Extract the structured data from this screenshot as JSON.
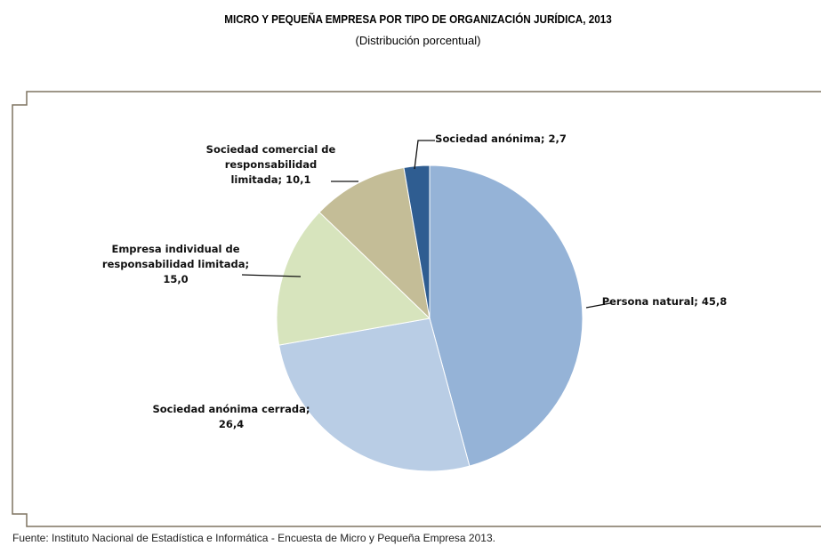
{
  "chart_data": {
    "type": "pie",
    "title": "MICRO Y PEQUEÑA EMPRESA POR TIPO DE ORGANIZACIÓN JURÍDICA, 2013",
    "subtitle": "(Distribución porcentual)",
    "categories": [
      "Persona natural;",
      "Sociedad anónima cerrada;",
      "Empresa individual de responsabilidad limitada;",
      "Sociedad comercial de responsabilidad limitada;",
      "Sociedad anónima;"
    ],
    "values": [
      45.8,
      26.4,
      15.0,
      10.1,
      2.7
    ],
    "value_labels": [
      "45,8",
      "26,4",
      "15,0",
      "10,1",
      "2,7"
    ],
    "colors": [
      "#95b3d7",
      "#b9cde5",
      "#d7e4bd",
      "#c4bd97",
      "#2f5d91"
    ],
    "source": "Fuente: Instituto Nacional de Estadística e Informática - Encuesta de Micro y Pequeña Empresa 2013."
  }
}
